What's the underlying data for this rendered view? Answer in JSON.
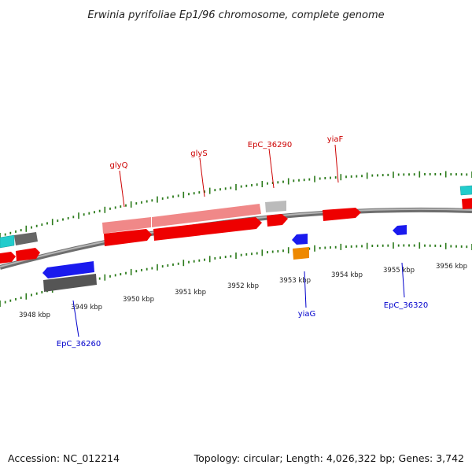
{
  "title": "Erwinia pyrifoliae Ep1/96 chromosome, complete genome",
  "footer": {
    "accession": "Accession: NC_012214",
    "topology": "Topology: circular; Length: 4,026,322 bp; Genes: 3,742"
  },
  "colors": {
    "backbone": "#888888",
    "tick": "#2a7a1a",
    "cds_red": "#ee0000",
    "cds_blue": "#1a1aee",
    "cds_light_red": "#f08888",
    "cds_gray": "#666666",
    "cds_light_gray": "#bbbbbb",
    "cds_cyan": "#22cccc",
    "cds_orange": "#ee8800",
    "label_top": "#cc0000",
    "label_bottom": "#0000cc"
  },
  "scale_labels": [
    {
      "kbp": 3948,
      "text": "3948 kbp"
    },
    {
      "kbp": 3949,
      "text": "3949 kbp"
    },
    {
      "kbp": 3950,
      "text": "3950 kbp"
    },
    {
      "kbp": 3951,
      "text": "3951 kbp"
    },
    {
      "kbp": 3952,
      "text": "3952 kbp"
    },
    {
      "kbp": 3953,
      "text": "3953 kbp"
    },
    {
      "kbp": 3954,
      "text": "3954 kbp"
    },
    {
      "kbp": 3955,
      "text": "3955 kbp"
    },
    {
      "kbp": 3956,
      "text": "3956 kbp"
    }
  ],
  "genes_labeled": [
    {
      "name": "glyQ",
      "strand": "plus"
    },
    {
      "name": "glyS",
      "strand": "plus"
    },
    {
      "name": "EpC_36290",
      "strand": "plus"
    },
    {
      "name": "yiaF",
      "strand": "plus"
    },
    {
      "name": "EpC_36260",
      "strand": "minus"
    },
    {
      "name": "yiaG",
      "strand": "minus"
    },
    {
      "name": "EpC_36320",
      "strand": "minus"
    }
  ]
}
